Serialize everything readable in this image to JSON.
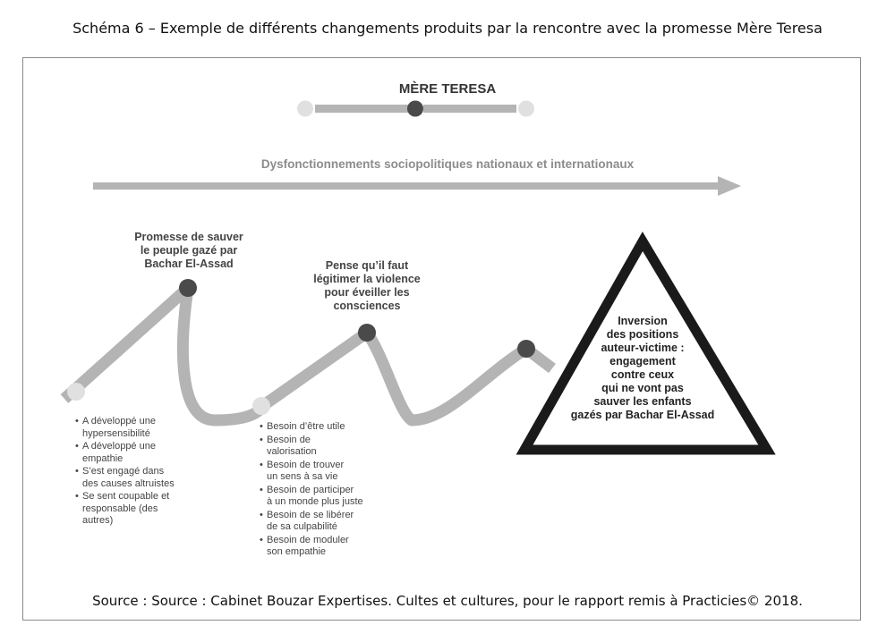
{
  "caption": "Schéma 6 – Exemple de différents changements produits par la rencontre avec la promesse Mère Teresa",
  "header": {
    "title": "MÈRE TERESA"
  },
  "arrow_label": "Dysfonctionnements sociopolitiques nationaux et internationaux",
  "nodes": {
    "promise": "Promesse de sauver\nle peuple gazé par\nBachar El-Assad",
    "violence": "Pense qu’il faut\nlégitimer la violence\npour éveiller les\nconsciences"
  },
  "triangle_text": "Inversion\ndes positions\nauteur-victime :\nengagement\ncontre ceux\nqui ne vont pas\nsauver les enfants\ngazés par Bachar El-Assad",
  "left_bullets": [
    "A développé une\nhypersensibilité",
    "A développé une\nempathie",
    "S’est engagé dans\ndes causes altruistes",
    "Se sent coupable et\nresponsable (des\nautres)"
  ],
  "middle_bullets": [
    "Besoin d’être utile",
    "Besoin de\nvalorisation",
    "Besoin de trouver\nun sens à sa vie",
    "Besoin de participer\nà un monde plus juste",
    "Besoin de se libérer\nde sa culpabilité",
    "Besoin de moduler\nson empathie"
  ],
  "source": "Source : Source : Cabinet Bouzar Expertises. Cultes et cultures, pour le rapport remis à Practicies© 2018.",
  "colors": {
    "path": "#b4b4b4",
    "dark_dot": "#4a4a4a",
    "light_dot": "#e0e0e0",
    "triangle": "#1a1a1a",
    "arrow": "#b4b4b4"
  }
}
